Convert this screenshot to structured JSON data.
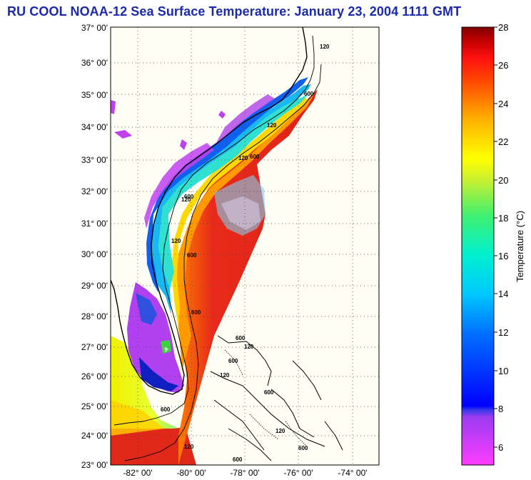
{
  "title": "RU COOL  NOAA-12  Sea Surface Temperature:  January 23, 2004 1111 GMT",
  "map": {
    "lat_labels": [
      "37° 00'",
      "36° 00'",
      "35° 00'",
      "34° 00'",
      "33° 00'",
      "32° 00'",
      "31° 00'",
      "30° 00'",
      "29° 00'",
      "28° 00'",
      "27° 00'",
      "26° 00'",
      "25° 00'",
      "24° 00'",
      "23° 00'"
    ],
    "lon_labels": [
      "-82° 00'",
      "-80° 00'",
      "-78° 00'",
      "-76° 00'",
      "-74° 00'"
    ],
    "isobath_labels": [
      "120",
      "600",
      "120",
      "600",
      "120",
      "600",
      "120",
      "600",
      "120",
      "600",
      "600",
      "120",
      "600",
      "120",
      "600",
      "120",
      "600",
      "600",
      "120",
      "600"
    ]
  },
  "colorbar": {
    "ticks": [
      "28",
      "26",
      "24",
      "22",
      "20",
      "18",
      "16",
      "14",
      "12",
      "10",
      "8",
      "6"
    ],
    "label": "Temperature (°C)",
    "min": 5,
    "max": 28
  },
  "colors": {
    "title": "#1a2aa8",
    "land": "#fffff6",
    "sst_warm": "#e8251c",
    "sst_cool": "#1ea8f0",
    "cloud": "#c83cf0"
  }
}
